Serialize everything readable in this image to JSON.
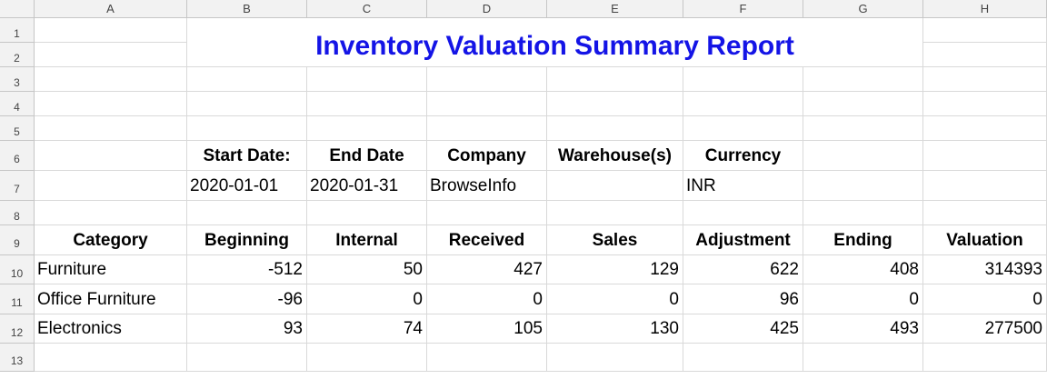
{
  "columns": [
    "A",
    "B",
    "C",
    "D",
    "E",
    "F",
    "G",
    "H"
  ],
  "rows": [
    "1",
    "2",
    "3",
    "4",
    "5",
    "6",
    "7",
    "8",
    "9",
    "10",
    "11",
    "12",
    "13"
  ],
  "report_title": "Inventory Valuation Summary Report",
  "info_headers": {
    "start": "Start Date:",
    "end": "End Date",
    "company": "Company",
    "warehouse": "Warehouse(s)",
    "currency": "Currency"
  },
  "info_values": {
    "start": "2020-01-01",
    "end": "2020-01-31",
    "company": "BrowseInfo",
    "warehouse": "",
    "currency": "INR"
  },
  "table_headers": [
    "Category",
    "Beginning",
    "Internal",
    "Received",
    "Sales",
    "Adjustment",
    "Ending",
    "Valuation"
  ],
  "table_rows": [
    [
      "Furniture",
      "-512",
      "50",
      "427",
      "129",
      "622",
      "408",
      "314393"
    ],
    [
      "Office Furniture",
      "-96",
      "0",
      "0",
      "0",
      "96",
      "0",
      "0"
    ],
    [
      "Electronics",
      "93",
      "74",
      "105",
      "130",
      "425",
      "493",
      "277500"
    ]
  ],
  "colors": {
    "title": "#1414e6",
    "header_bg": "#f2f2f2",
    "gridline": "#d9d9d9"
  }
}
